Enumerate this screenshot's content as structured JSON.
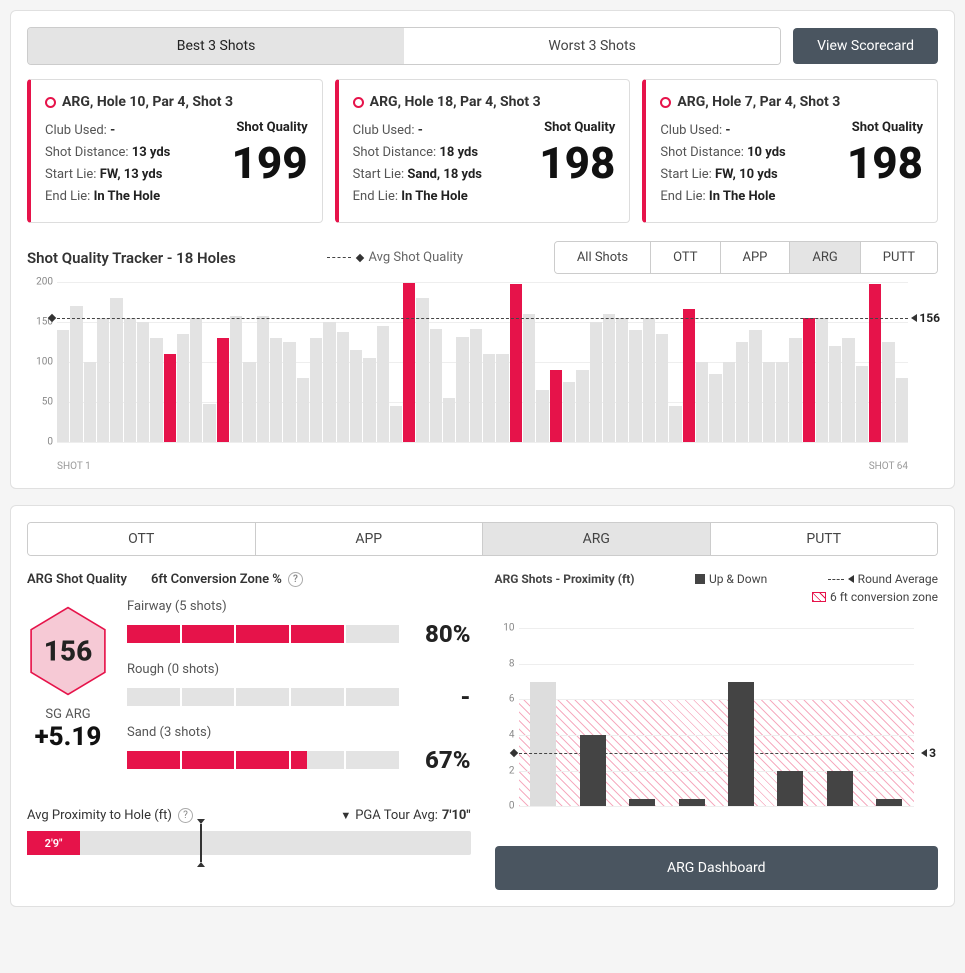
{
  "colors": {
    "accent": "#e6134a",
    "darkBtn": "#4a5560",
    "barGrey": "#e3e3e3",
    "darkBar": "#444"
  },
  "topSegment": {
    "best": "Best 3 Shots",
    "worst": "Worst 3 Shots",
    "active": "best"
  },
  "viewScorecard": "View Scorecard",
  "shots": [
    {
      "title": "ARG, Hole 10, Par 4, Shot 3",
      "club": "-",
      "dist": "13 yds",
      "start": "FW, 13 yds",
      "end": "In The Hole",
      "sq": 199
    },
    {
      "title": "ARG, Hole 18, Par 4, Shot 3",
      "club": "-",
      "dist": "18 yds",
      "start": "Sand, 18 yds",
      "end": "In The Hole",
      "sq": 198
    },
    {
      "title": "ARG, Hole 7, Par 4, Shot 3",
      "club": "-",
      "dist": "10 yds",
      "start": "FW, 10 yds",
      "end": "In The Hole",
      "sq": 198
    }
  ],
  "shotLabels": {
    "club": "Club Used: ",
    "dist": "Shot Distance: ",
    "start": "Start Lie: ",
    "end": "End Lie: ",
    "sq": "Shot Quality"
  },
  "tracker": {
    "title": "Shot Quality Tracker - 18 Holes",
    "avgLabel": "Avg Shot Quality",
    "filters": [
      "All Shots",
      "OTT",
      "APP",
      "ARG",
      "PUTT"
    ],
    "activeFilter": "ARG",
    "ylim": [
      0,
      200
    ],
    "yticks": [
      0,
      50,
      100,
      150,
      200
    ],
    "avg": 156,
    "xLabels": [
      "SHOT 1",
      "SHOT 64"
    ],
    "bars": [
      {
        "v": 140
      },
      {
        "v": 170
      },
      {
        "v": 100
      },
      {
        "v": 155
      },
      {
        "v": 180
      },
      {
        "v": 155
      },
      {
        "v": 150
      },
      {
        "v": 130
      },
      {
        "v": 110,
        "hl": true
      },
      {
        "v": 135
      },
      {
        "v": 155
      },
      {
        "v": 48
      },
      {
        "v": 130,
        "hl": true
      },
      {
        "v": 158
      },
      {
        "v": 100
      },
      {
        "v": 158
      },
      {
        "v": 130
      },
      {
        "v": 125
      },
      {
        "v": 80
      },
      {
        "v": 130
      },
      {
        "v": 150
      },
      {
        "v": 138
      },
      {
        "v": 115
      },
      {
        "v": 105
      },
      {
        "v": 145
      },
      {
        "v": 45
      },
      {
        "v": 199,
        "hl": true
      },
      {
        "v": 180
      },
      {
        "v": 142
      },
      {
        "v": 55
      },
      {
        "v": 132
      },
      {
        "v": 142
      },
      {
        "v": 110
      },
      {
        "v": 110
      },
      {
        "v": 198,
        "hl": true
      },
      {
        "v": 160
      },
      {
        "v": 65
      },
      {
        "v": 90,
        "hl": true
      },
      {
        "v": 75
      },
      {
        "v": 90
      },
      {
        "v": 150
      },
      {
        "v": 160
      },
      {
        "v": 155
      },
      {
        "v": 140
      },
      {
        "v": 155
      },
      {
        "v": 135
      },
      {
        "v": 45
      },
      {
        "v": 167,
        "hl": true
      },
      {
        "v": 100
      },
      {
        "v": 85
      },
      {
        "v": 100
      },
      {
        "v": 125
      },
      {
        "v": 140
      },
      {
        "v": 100
      },
      {
        "v": 100
      },
      {
        "v": 130
      },
      {
        "v": 155,
        "hl": true
      },
      {
        "v": 155
      },
      {
        "v": 120
      },
      {
        "v": 130
      },
      {
        "v": 95
      },
      {
        "v": 198,
        "hl": true
      },
      {
        "v": 125
      },
      {
        "v": 80
      }
    ]
  },
  "lowerTabs": {
    "items": [
      "OTT",
      "APP",
      "ARG",
      "PUTT"
    ],
    "active": "ARG"
  },
  "argSQ": {
    "label": "ARG Shot Quality",
    "value": 156,
    "sgLabel": "SG ARG",
    "sgValue": "+5.19"
  },
  "conversion": {
    "title": "6ft Conversion Zone %",
    "rows": [
      {
        "label": "Fairway (5 shots)",
        "fill": 4,
        "total": 5,
        "pct": "80%"
      },
      {
        "label": "Rough (0 shots)",
        "fill": 0,
        "total": 5,
        "pct": "-"
      },
      {
        "label": "Sand (3 shots)",
        "fill": 3.3,
        "total": 5,
        "pct": "67%"
      }
    ]
  },
  "proximityBar": {
    "label": "Avg Proximity to Hole (ft)",
    "pgaLabel": "PGA Tour Avg:",
    "pgaVal": "7'10\"",
    "value": "2'9\"",
    "fillPct": 12,
    "markerPct": 39
  },
  "proxChart": {
    "title": "ARG Shots - Proximity (ft)",
    "legUpDown": "Up & Down",
    "legAvg": "Round Average",
    "legZone": "6 ft conversion zone",
    "ylim": [
      0,
      11
    ],
    "yticks": [
      0,
      2,
      4,
      6,
      8,
      10
    ],
    "zoneMax": 6,
    "avg": 3,
    "bars": [
      {
        "v": 7,
        "upDown": false
      },
      {
        "v": 4,
        "upDown": true
      },
      {
        "v": 0.4,
        "upDown": true
      },
      {
        "v": 0.4,
        "upDown": true
      },
      {
        "v": 7,
        "upDown": true
      },
      {
        "v": 2,
        "upDown": true
      },
      {
        "v": 2,
        "upDown": true
      },
      {
        "v": 0.4,
        "upDown": true
      }
    ]
  },
  "argDashBtn": "ARG Dashboard"
}
